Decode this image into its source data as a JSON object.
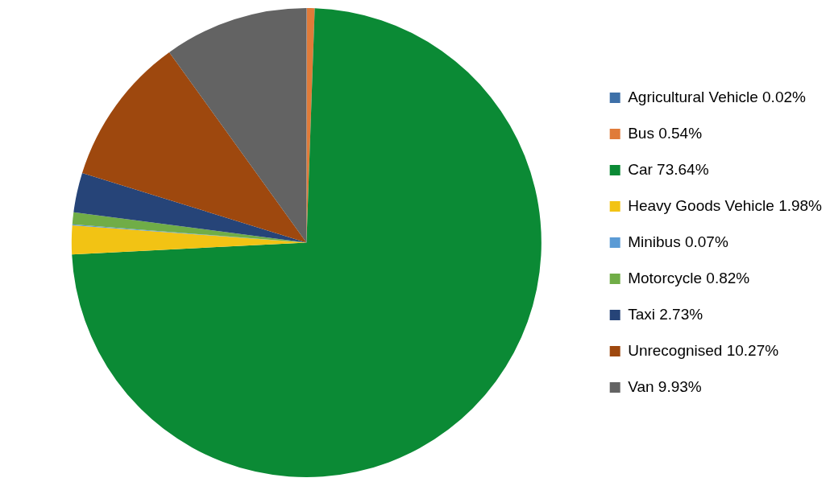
{
  "chart_data": {
    "type": "pie",
    "categories": [
      "Agricultural Vehicle",
      "Bus",
      "Car",
      "Heavy Goods Vehicle",
      "Minibus",
      "Motorcycle",
      "Taxi",
      "Unrecognised",
      "Van"
    ],
    "values": [
      0.02,
      0.54,
      73.64,
      1.98,
      0.07,
      0.82,
      2.73,
      10.27,
      9.93
    ],
    "value_labels": [
      "0.02%",
      "0.54%",
      "73.64%",
      "1.98%",
      "0.07%",
      "0.82%",
      "2.73%",
      "10.27%",
      "9.93%"
    ],
    "colors": [
      "#3e70a8",
      "#e07b39",
      "#0b8a35",
      "#f2c314",
      "#5b9bd5",
      "#70ad47",
      "#264478",
      "#9e480e",
      "#636363"
    ],
    "legend": "right"
  }
}
